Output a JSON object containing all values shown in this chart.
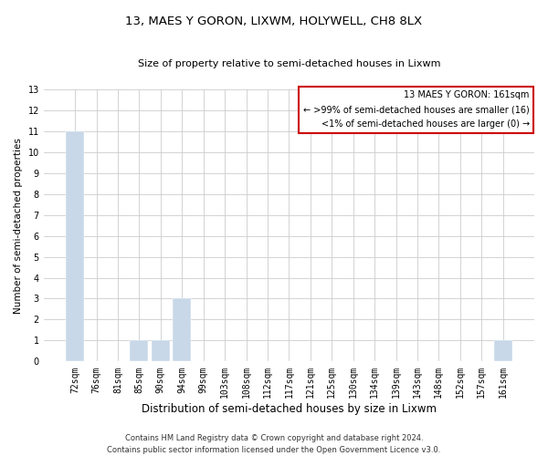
{
  "title": "13, MAES Y GORON, LIXWM, HOLYWELL, CH8 8LX",
  "subtitle": "Size of property relative to semi-detached houses in Lixwm",
  "xlabel": "Distribution of semi-detached houses by size in Lixwm",
  "ylabel": "Number of semi-detached properties",
  "categories": [
    "72sqm",
    "76sqm",
    "81sqm",
    "85sqm",
    "90sqm",
    "94sqm",
    "99sqm",
    "103sqm",
    "108sqm",
    "112sqm",
    "117sqm",
    "121sqm",
    "125sqm",
    "130sqm",
    "134sqm",
    "139sqm",
    "143sqm",
    "148sqm",
    "152sqm",
    "157sqm",
    "161sqm"
  ],
  "values": [
    11,
    0,
    0,
    1,
    1,
    3,
    0,
    0,
    0,
    0,
    0,
    0,
    0,
    0,
    0,
    0,
    0,
    0,
    0,
    0,
    1
  ],
  "bar_color": "#c8d8e8",
  "highlight_box_color": "#cc0000",
  "ylim": [
    0,
    13
  ],
  "yticks": [
    0,
    1,
    2,
    3,
    4,
    5,
    6,
    7,
    8,
    9,
    10,
    11,
    12,
    13
  ],
  "legend_title": "13 MAES Y GORON: 161sqm",
  "legend_line1": "← >99% of semi-detached houses are smaller (16)",
  "legend_line2": "<1% of semi-detached houses are larger (0) →",
  "footer_line1": "Contains HM Land Registry data © Crown copyright and database right 2024.",
  "footer_line2": "Contains public sector information licensed under the Open Government Licence v3.0.",
  "grid_color": "#cccccc",
  "background_color": "#ffffff",
  "title_fontsize": 9.5,
  "subtitle_fontsize": 8,
  "tick_fontsize": 7,
  "ylabel_fontsize": 7.5,
  "xlabel_fontsize": 8.5,
  "footer_fontsize": 6,
  "legend_fontsize": 7
}
